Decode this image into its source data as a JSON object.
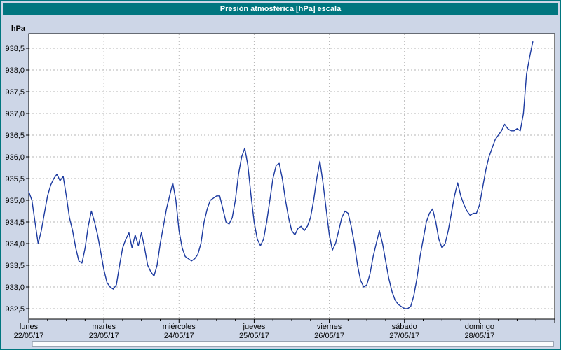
{
  "title": "Presión atmosférica [hPa] escala",
  "colors": {
    "titlebar": "#00767f",
    "titlebar_text": "#ffffff",
    "window_background": "#cdd6e7",
    "plot_background": "#ffffff",
    "grid": "#b4b4b4",
    "axis": "#000000",
    "series_line": "#1c3aa0"
  },
  "chart_data": {
    "type": "line",
    "title": "Presión atmosférica [hPa] escala",
    "ylabel": "hPa",
    "ylim": [
      932.5,
      938.5
    ],
    "grid": "dashed",
    "legend": "none",
    "y_ticks": [
      {
        "value": 938.5,
        "label": "938,5"
      },
      {
        "value": 938.0,
        "label": "938,0"
      },
      {
        "value": 937.5,
        "label": "937,5"
      },
      {
        "value": 937.0,
        "label": "937,0"
      },
      {
        "value": 936.5,
        "label": "936,5"
      },
      {
        "value": 936.0,
        "label": "936,0"
      },
      {
        "value": 935.5,
        "label": "935,5"
      },
      {
        "value": 935.0,
        "label": "935,0"
      },
      {
        "value": 934.5,
        "label": "934,5"
      },
      {
        "value": 934.0,
        "label": "934,0"
      },
      {
        "value": 933.5,
        "label": "933,5"
      },
      {
        "value": 933.0,
        "label": "933,0"
      },
      {
        "value": 932.5,
        "label": "932,5"
      }
    ],
    "days": [
      {
        "name": "lunes",
        "date": "22/05/17"
      },
      {
        "name": "martes",
        "date": "23/05/17"
      },
      {
        "name": "miércoles",
        "date": "24/05/17"
      },
      {
        "name": "jueves",
        "date": "25/05/17"
      },
      {
        "name": "viernes",
        "date": "26/05/17"
      },
      {
        "name": "sábado",
        "date": "27/05/17"
      },
      {
        "name": "domingo",
        "date": "28/05/17"
      }
    ],
    "x_unit": "hours since lunes 22/05/17 00:00",
    "x_start_hour": 0,
    "x_step_hours": 1,
    "series": [
      {
        "name": "Presión atmosférica [hPa]",
        "color": "#1c3aa0",
        "values": [
          935.2,
          935.0,
          934.5,
          934.0,
          934.3,
          934.7,
          935.1,
          935.35,
          935.5,
          935.6,
          935.45,
          935.55,
          935.1,
          934.6,
          934.3,
          933.9,
          933.6,
          933.55,
          933.9,
          934.4,
          934.75,
          934.5,
          934.2,
          933.8,
          933.4,
          933.1,
          933.0,
          932.95,
          933.05,
          933.5,
          933.9,
          934.1,
          934.25,
          933.9,
          934.2,
          933.95,
          934.25,
          933.9,
          933.5,
          933.35,
          933.25,
          933.5,
          934.0,
          934.4,
          934.8,
          935.1,
          935.4,
          935.0,
          934.3,
          933.9,
          933.7,
          933.65,
          933.6,
          933.65,
          933.75,
          934.0,
          934.5,
          934.8,
          935.0,
          935.05,
          935.1,
          935.1,
          934.8,
          934.5,
          934.45,
          934.6,
          935.0,
          935.6,
          936.0,
          936.2,
          935.8,
          935.1,
          934.5,
          934.1,
          933.95,
          934.1,
          934.5,
          935.0,
          935.5,
          935.8,
          935.85,
          935.5,
          935.0,
          934.6,
          934.3,
          934.2,
          934.35,
          934.4,
          934.3,
          934.4,
          934.6,
          935.0,
          935.5,
          935.9,
          935.4,
          934.8,
          934.2,
          933.85,
          934.0,
          934.3,
          934.6,
          934.75,
          934.7,
          934.4,
          934.0,
          933.5,
          933.15,
          933.0,
          933.05,
          933.3,
          933.7,
          934.0,
          934.3,
          934.0,
          933.6,
          933.2,
          932.9,
          932.7,
          932.6,
          932.55,
          932.5,
          932.5,
          932.55,
          932.8,
          933.2,
          933.7,
          934.1,
          934.5,
          934.7,
          934.8,
          934.5,
          934.1,
          933.9,
          934.0,
          934.3,
          934.7,
          935.1,
          935.4,
          935.1,
          934.9,
          934.75,
          934.65,
          934.7,
          934.7,
          934.9,
          935.3,
          935.7,
          936.0,
          936.2,
          936.4,
          936.5,
          936.6,
          936.75,
          936.65,
          936.6,
          936.6,
          936.65,
          936.6,
          937.0,
          937.9,
          938.3,
          938.65
        ]
      }
    ]
  }
}
